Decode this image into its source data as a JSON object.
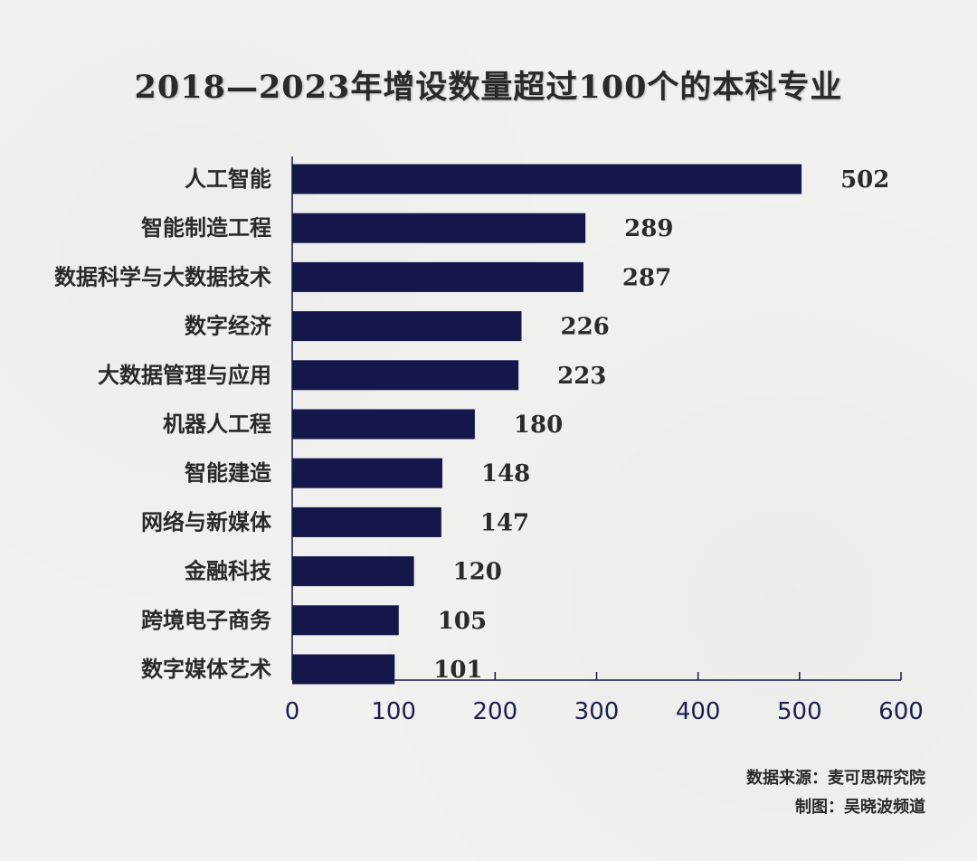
{
  "chart_data": {
    "type": "bar",
    "orientation": "horizontal",
    "title": "2018—2023年增设数量超过100个的本科专业",
    "categories": [
      "人工智能",
      "智能制造工程",
      "数据科学与大数据技术",
      "数字经济",
      "大数据管理与应用",
      "机器人工程",
      "智能建造",
      "网络与新媒体",
      "金融科技",
      "跨境电子商务",
      "数字媒体艺术"
    ],
    "values": [
      502,
      289,
      287,
      226,
      223,
      180,
      148,
      147,
      120,
      105,
      101
    ],
    "value_labels": [
      "502",
      "289",
      "287",
      "226",
      "223",
      "180",
      "148",
      "147",
      "120",
      "105",
      "101"
    ],
    "xlim": [
      0,
      600
    ],
    "xticks": [
      "0",
      "100",
      "200",
      "300",
      "400",
      "500",
      "600"
    ],
    "xlabel": "",
    "ylabel": "",
    "grid": false,
    "legend": "none",
    "colors": {
      "bar": "#15164a",
      "axis": "#15164a",
      "tick_text": "#1b1f4f",
      "text": "#2a2a2a",
      "background": "#f1f1ef"
    }
  },
  "footer": {
    "source": "数据来源：麦可思研究院",
    "credit": "制图：吴晓波频道"
  }
}
